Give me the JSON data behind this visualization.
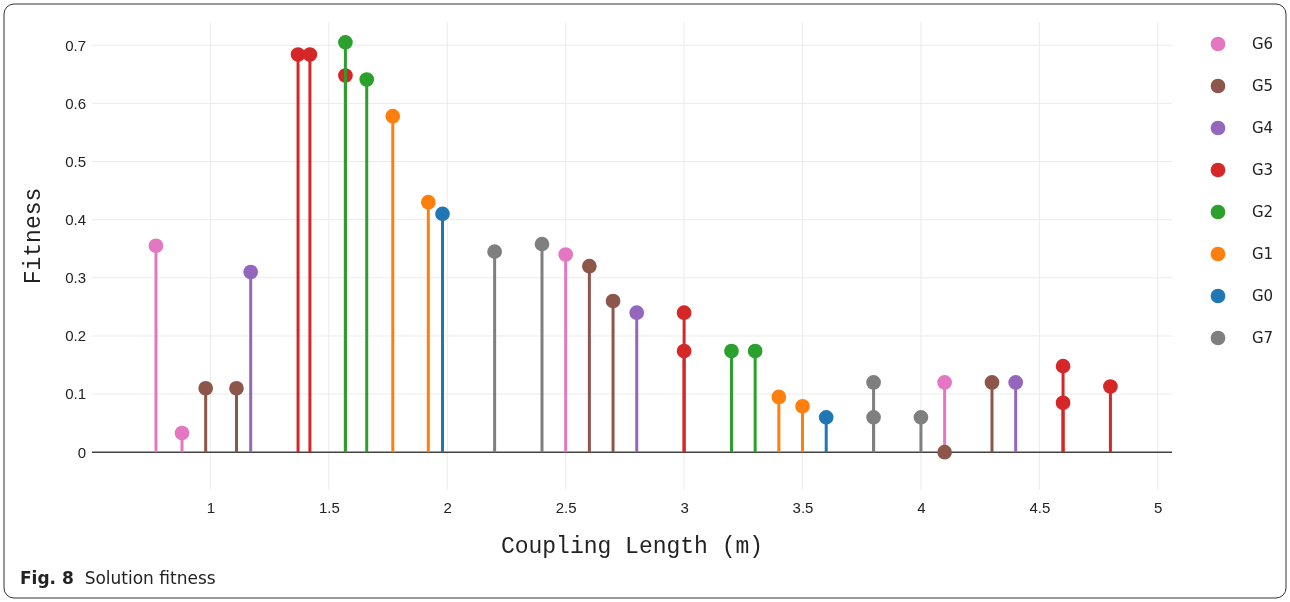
{
  "chart_data": {
    "type": "lollipop",
    "xlabel": "Coupling Length (m)",
    "ylabel": "Fitness",
    "annotations": [
      "Fig. 8  Solution fitness"
    ],
    "xlim": [
      0.5,
      5.06
    ],
    "ylim": [
      -0.065,
      0.74
    ],
    "xticks": [
      1,
      1.5,
      2,
      2.5,
      3,
      3.5,
      4,
      4.5,
      5
    ],
    "yticks": [
      0,
      0.1,
      0.2,
      0.3,
      0.4,
      0.5,
      0.6,
      0.7
    ],
    "grid": true,
    "legend": "top right",
    "marker": "circle",
    "series": [
      {
        "name": "G6",
        "color": "#e377c2",
        "x": [
          0.77,
          0.88,
          2.5,
          4.1
        ],
        "values": [
          0.355,
          0.033,
          0.34,
          0.12
        ]
      },
      {
        "name": "G5",
        "color": "#8c564b",
        "x": [
          0.98,
          1.11,
          2.6,
          2.7,
          4.1,
          4.3
        ],
        "values": [
          0.11,
          0.11,
          0.32,
          0.26,
          0,
          0.12
        ]
      },
      {
        "name": "G4",
        "color": "#9467bd",
        "x": [
          1.17,
          2.8,
          4.4
        ],
        "values": [
          0.31,
          0.24,
          0.12
        ]
      },
      {
        "name": "G3",
        "color": "#d62728",
        "x": [
          1.37,
          1.42,
          1.57,
          3,
          3,
          4.6,
          4.6,
          4.8
        ],
        "values": [
          0.684,
          0.684,
          0.648,
          0.24,
          0.174,
          0.148,
          0.085,
          0.113
        ]
      },
      {
        "name": "G2",
        "color": "#2ca02c",
        "x": [
          1.57,
          1.66,
          3.2,
          3.3
        ],
        "values": [
          0.705,
          0.641,
          0.174,
          0.174
        ]
      },
      {
        "name": "G1",
        "color": "#ff7f0e",
        "x": [
          1.77,
          1.92,
          3.4,
          3.5
        ],
        "values": [
          0.578,
          0.43,
          0.095,
          0.079
        ]
      },
      {
        "name": "G0",
        "color": "#1f77b4",
        "x": [
          1.98,
          3.6
        ],
        "values": [
          0.41,
          0.06
        ]
      },
      {
        "name": "G7",
        "color": "#7f7f7f",
        "x": [
          2.2,
          2.4,
          3.8,
          3.8,
          4
        ],
        "values": [
          0.345,
          0.358,
          0.12,
          0.06,
          0.06
        ]
      }
    ]
  }
}
